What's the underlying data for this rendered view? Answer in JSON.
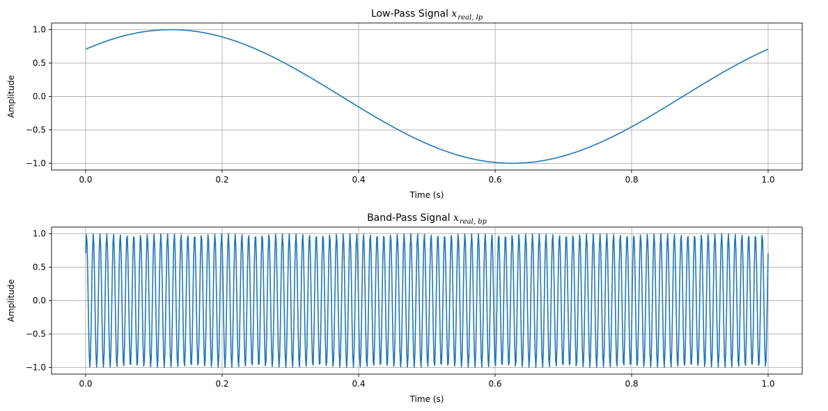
{
  "chart_data": [
    {
      "type": "line",
      "title_text": "Low-Pass Signal ",
      "title_math": "x",
      "title_sub": "real, lp",
      "xlabel": "Time (s)",
      "ylabel": "Amplitude",
      "xlim": [
        -0.05,
        1.05
      ],
      "ylim": [
        -1.1,
        1.1
      ],
      "xticks": [
        0.0,
        0.2,
        0.4,
        0.6,
        0.8,
        1.0
      ],
      "xtick_labels": [
        "0.0",
        "0.2",
        "0.4",
        "0.6",
        "0.8",
        "1.0"
      ],
      "yticks": [
        -1.0,
        -0.5,
        0.0,
        0.5,
        1.0
      ],
      "ytick_labels": [
        "−1.0",
        "−0.5",
        "0.0",
        "0.5",
        "1.0"
      ],
      "grid": true,
      "line_color": "#1f77b4",
      "signal": {
        "function": "sin",
        "amplitude": 1.0,
        "frequency_hz": 1,
        "phase_rad": 0.7854,
        "t_start": 0.0,
        "t_end": 1.0,
        "samples": 1000
      }
    },
    {
      "type": "line",
      "title_text": "Band-Pass Signal ",
      "title_math": "x",
      "title_sub": "real, bp",
      "xlabel": "Time (s)",
      "ylabel": "Amplitude",
      "xlim": [
        -0.05,
        1.05
      ],
      "ylim": [
        -1.1,
        1.1
      ],
      "xticks": [
        0.0,
        0.2,
        0.4,
        0.6,
        0.8,
        1.0
      ],
      "xtick_labels": [
        "0.0",
        "0.2",
        "0.4",
        "0.6",
        "0.8",
        "1.0"
      ],
      "yticks": [
        -1.0,
        -0.5,
        0.0,
        0.5,
        1.0
      ],
      "ytick_labels": [
        "−1.0",
        "−0.5",
        "0.0",
        "0.5",
        "1.0"
      ],
      "grid": true,
      "line_color": "#1f77b4",
      "signal": {
        "function": "sin",
        "amplitude": 1.0,
        "frequency_hz": 101,
        "phase_rad": 0.7854,
        "t_start": 0.0,
        "t_end": 1.0,
        "samples": 1000
      }
    }
  ]
}
